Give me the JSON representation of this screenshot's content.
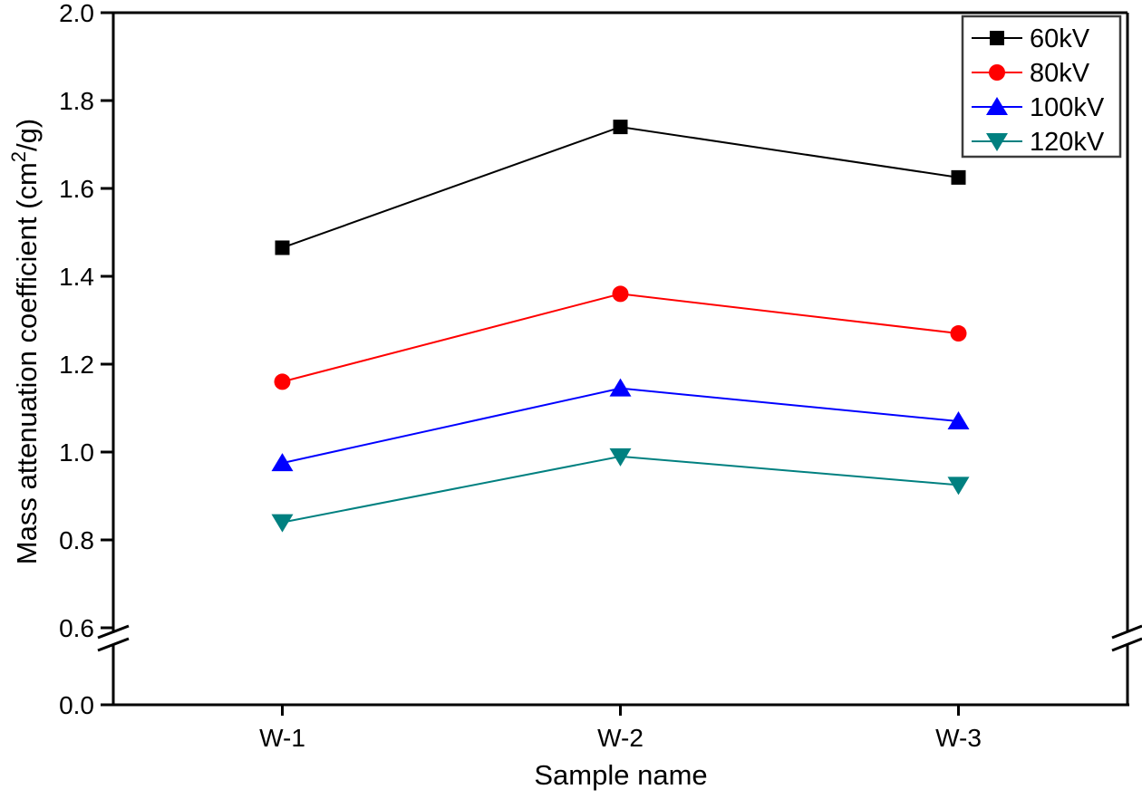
{
  "chart_data": {
    "type": "line",
    "title": "",
    "xlabel": "Sample name",
    "ylabel": "Mass attenuation coefficient (cm²/g)",
    "categories": [
      "W-1",
      "W-2",
      "W-3"
    ],
    "series": [
      {
        "name": "60kV",
        "color": "#000000",
        "marker": "square",
        "values": [
          1.465,
          1.74,
          1.625
        ]
      },
      {
        "name": "80kV",
        "color": "#ff0000",
        "marker": "circle",
        "values": [
          1.16,
          1.36,
          1.27
        ]
      },
      {
        "name": "100kV",
        "color": "#0000ff",
        "marker": "triangle-up",
        "values": [
          0.975,
          1.145,
          1.07
        ]
      },
      {
        "name": "120kV",
        "color": "#008080",
        "marker": "triangle-down",
        "values": [
          0.84,
          0.99,
          0.925
        ]
      }
    ],
    "ylim": [
      0.0,
      2.0
    ],
    "y_ticks": [
      2.0,
      1.8,
      1.6,
      1.4,
      1.2,
      1.0,
      0.8,
      0.6,
      0.0
    ],
    "y_tick_labels": [
      "2.0",
      "1.8",
      "1.6",
      "1.4",
      "1.2",
      "1.0",
      "0.8",
      "0.6",
      "0.0"
    ],
    "axis_break": {
      "axis": "y",
      "between": [
        0.0,
        0.6
      ]
    },
    "grid": false,
    "legend": {
      "position": "top-right",
      "entries": [
        "60kV",
        "80kV",
        "100kV",
        "120kV"
      ]
    }
  }
}
